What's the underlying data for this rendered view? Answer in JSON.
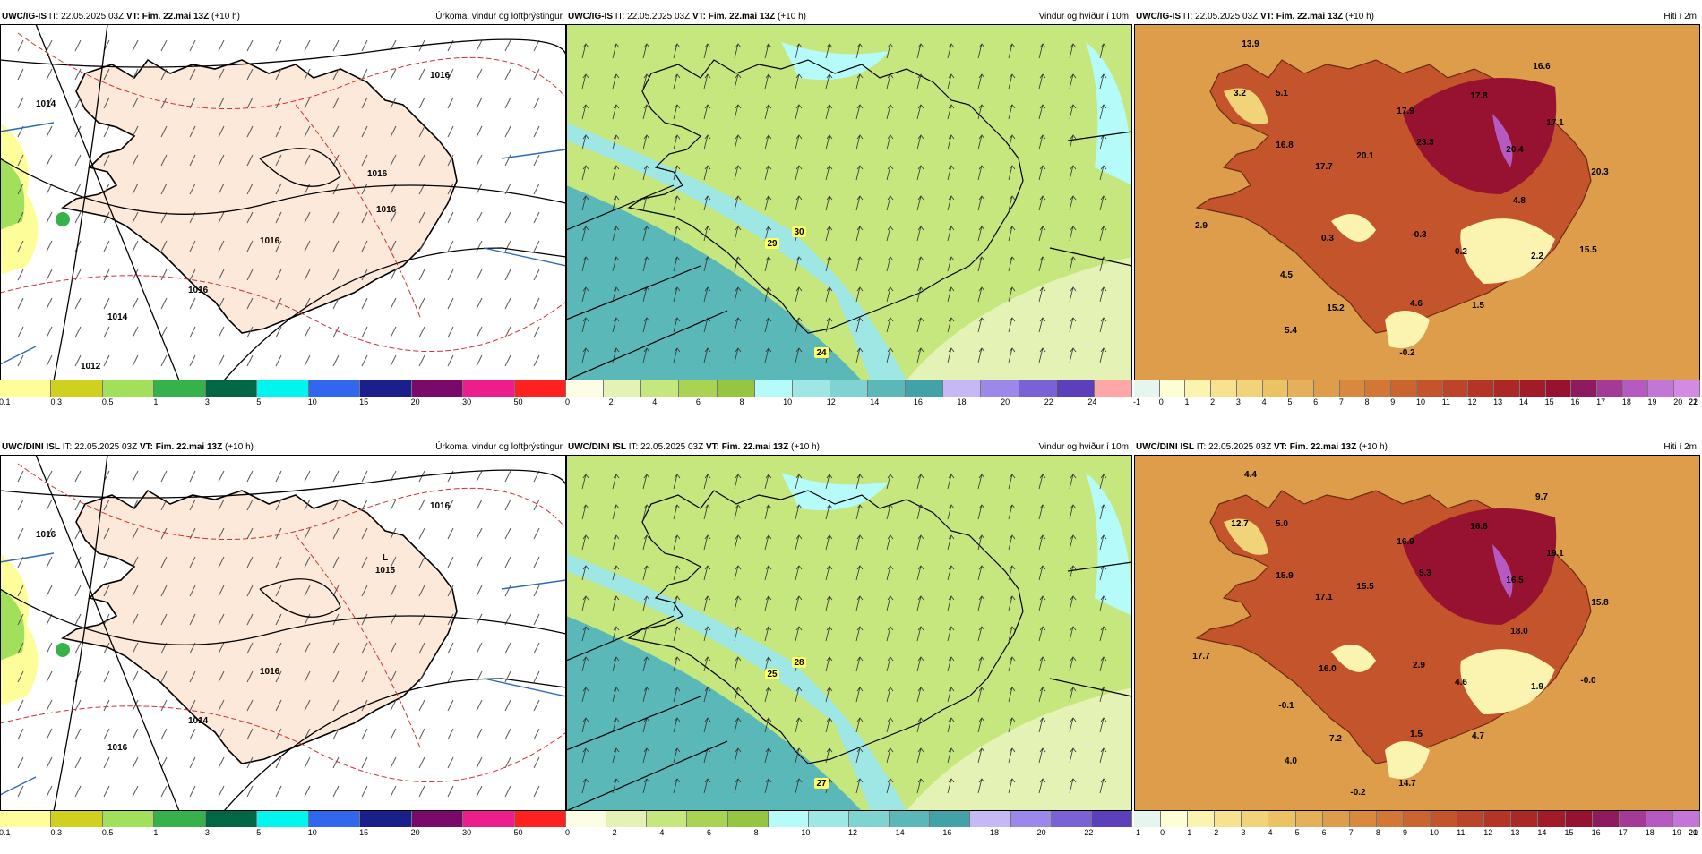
{
  "panels": [
    {
      "id": "r1p1",
      "header_model": "UWC/IG-IS",
      "header_rest": " IT: 22.05.2025 03Z ",
      "vt_label": "VT:",
      "vt": "Fim. 22.mai 13Z",
      "lead": " (+10 h)",
      "title": "Úrkoma, vindur og loftþrýstingur",
      "legend": {
        "colors": [
          "#fdfd9a",
          "#cfd020",
          "#a2e05c",
          "#36b24a",
          "#006644",
          "#00f5ee",
          "#3166ee",
          "#1a1f8c",
          "#7a0a6a",
          "#ee1d8c",
          "#ff2020"
        ],
        "ticks": [
          "0.1",
          "0.3",
          "0.5",
          "1",
          "3",
          "5",
          "10",
          "15",
          "20",
          "30",
          "50"
        ]
      },
      "isobars": [
        "1014",
        "1016",
        "1016",
        "1016",
        "1014",
        "1016",
        "1012",
        "1016"
      ]
    },
    {
      "id": "r1p2",
      "header_model": "UWC/IG-IS",
      "header_rest": " IT: 22.05.2025 03Z ",
      "vt_label": "VT:",
      "vt": "Fim. 22.mai 13Z",
      "lead": " (+10 h)",
      "title": "Vindur og hviður í 10m",
      "legend": {
        "colors": [
          "#fdfde6",
          "#e4f3b5",
          "#c6e67e",
          "#a8d353",
          "#96c641",
          "#b4fbfa",
          "#9ee7e4",
          "#7fd3d0",
          "#5bb8b8",
          "#42a2a8",
          "#c6b8f5",
          "#9b88ea",
          "#7a62d6",
          "#5c3fbb",
          "#ffa6a6"
        ],
        "ticks": [
          "0",
          "2",
          "4",
          "6",
          "8",
          "10",
          "12",
          "14",
          "16",
          "18",
          "20",
          "22",
          "24"
        ]
      },
      "values": [
        "29",
        "30",
        "24"
      ]
    },
    {
      "id": "r1p3",
      "header_model": "UWC/IG-IS",
      "header_rest": " IT: 22.05.2025 03Z ",
      "vt_label": "VT:",
      "vt": "Fim. 22.mai 13Z",
      "lead": " (+10 h)",
      "title": "Hiti í 2m",
      "legend": {
        "colors": [
          "#e6f6ee",
          "#fefed4",
          "#fbf3b0",
          "#f7e38f",
          "#f1d37a",
          "#ebc264",
          "#e5b059",
          "#de9d4b",
          "#d8893e",
          "#d27736",
          "#cb6530",
          "#c4542b",
          "#bc4428",
          "#b43526",
          "#ab2824",
          "#a11c28",
          "#971230",
          "#8f1a60",
          "#a43a96",
          "#b65ac2",
          "#c376d8",
          "#d28ae4"
        ],
        "ticks": [
          "-1",
          "0",
          "1",
          "2",
          "3",
          "4",
          "5",
          "6",
          "7",
          "8",
          "9",
          "10",
          "11",
          "12",
          "13",
          "14",
          "15",
          "16",
          "17",
          "18",
          "19",
          "20",
          "21",
          "22"
        ]
      },
      "values": [
        "13.9",
        "3.2",
        "5.1",
        "16.8",
        "17.7",
        "20.1",
        "17.9",
        "23.3",
        "17.8",
        "16.6",
        "17.1",
        "20.4",
        "20.3",
        "4.8",
        "2.9",
        "0.3",
        "-0.3",
        "0.2",
        "2.2",
        "15.5",
        "4.5",
        "15.2",
        "4.6",
        "1.5",
        "5.4",
        "-0.2"
      ]
    },
    {
      "id": "r2p1",
      "header_model": "UWC/DINI ISL",
      "header_rest": " IT: 22.05.2025 03Z ",
      "vt_label": "VT:",
      "vt": "Fim. 22.mai 13Z",
      "lead": " (+10 h)",
      "title": "Úrkoma, vindur og loftþrýstingur",
      "legend": {
        "colors": [
          "#fdfd9a",
          "#cfd020",
          "#a2e05c",
          "#36b24a",
          "#006644",
          "#00f5ee",
          "#3166ee",
          "#1a1f8c",
          "#7a0a6a",
          "#ee1d8c",
          "#ff2020"
        ],
        "ticks": [
          "0.1",
          "0.3",
          "0.5",
          "1",
          "3",
          "5",
          "10",
          "15",
          "20",
          "30",
          "50"
        ]
      },
      "low_label": "L",
      "low_value": "1015",
      "isobars": [
        "1016",
        "1016",
        "1016",
        "1014",
        "1016"
      ]
    },
    {
      "id": "r2p2",
      "header_model": "UWC/DINI ISL",
      "header_rest": " IT: 22.05.2025 03Z ",
      "vt_label": "VT:",
      "vt": "Fim. 22.mai 13Z",
      "lead": " (+10 h)",
      "title": "Vindur og hviður í 10m",
      "legend": {
        "colors": [
          "#fdfde6",
          "#e4f3b5",
          "#c6e67e",
          "#a8d353",
          "#96c641",
          "#b4fbfa",
          "#9ee7e4",
          "#7fd3d0",
          "#5bb8b8",
          "#42a2a8",
          "#c6b8f5",
          "#9b88ea",
          "#7a62d6",
          "#5c3fbb"
        ],
        "ticks": [
          "0",
          "2",
          "4",
          "6",
          "8",
          "10",
          "12",
          "14",
          "16",
          "18",
          "20",
          "22"
        ]
      },
      "values": [
        "25",
        "28",
        "27"
      ]
    },
    {
      "id": "r2p3",
      "header_model": "UWC/DINI ISL",
      "header_rest": " IT: 22.05.2025 03Z ",
      "vt_label": "VT:",
      "vt": "Fim. 22.mai 13Z",
      "lead": " (+10 h)",
      "title": "Hiti í 2m",
      "legend": {
        "colors": [
          "#e6f6ee",
          "#fefed4",
          "#fbf3b0",
          "#f7e38f",
          "#f1d37a",
          "#ebc264",
          "#e5b059",
          "#de9d4b",
          "#d8893e",
          "#d27736",
          "#cb6530",
          "#c4542b",
          "#bc4428",
          "#b43526",
          "#ab2824",
          "#a11c28",
          "#971230",
          "#8f1a60",
          "#a43a96",
          "#b65ac2",
          "#c376d8"
        ],
        "ticks": [
          "-1",
          "0",
          "1",
          "2",
          "3",
          "4",
          "5",
          "6",
          "7",
          "8",
          "9",
          "10",
          "11",
          "12",
          "13",
          "14",
          "15",
          "16",
          "17",
          "18",
          "19",
          "20",
          "21"
        ]
      },
      "values": [
        "4.4",
        "12.7",
        "5.0",
        "15.9",
        "17.1",
        "15.5",
        "16.9",
        "5.3",
        "16.6",
        "9.7",
        "19.1",
        "16.5",
        "15.8",
        "18.0",
        "17.7",
        "16.0",
        "2.9",
        "4.6",
        "1.9",
        "-0.0",
        "-0.1",
        "7.2",
        "1.5",
        "4.7",
        "4.0",
        "14.7",
        "-0.2"
      ]
    }
  ]
}
